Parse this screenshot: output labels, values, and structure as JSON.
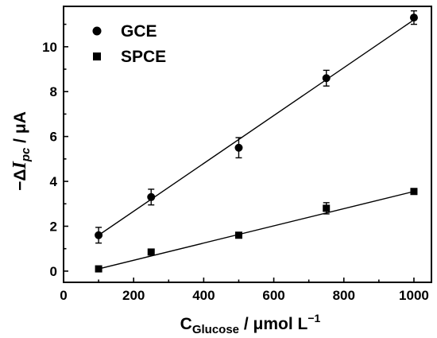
{
  "chart_data": {
    "type": "scatter",
    "xlabel": {
      "main": "C",
      "sub": "Glucose",
      "rest": " / μmol L",
      "sup": "−1"
    },
    "ylabel": {
      "pre": "−Δ",
      "italic": "I",
      "sub": "pc",
      "rest": " / μA"
    },
    "xlim": [
      0,
      1050
    ],
    "ylim": [
      -0.5,
      11.8
    ],
    "xticks": [
      0,
      200,
      400,
      600,
      800,
      1000
    ],
    "yticks": [
      0,
      2,
      4,
      6,
      8,
      10
    ],
    "legend_position": "top-left",
    "grid": false,
    "series": [
      {
        "name": "GCE",
        "marker": "circle",
        "x": [
          100,
          250,
          500,
          750,
          1000
        ],
        "y": [
          1.6,
          3.3,
          5.5,
          8.6,
          11.3
        ],
        "err": [
          0.35,
          0.35,
          0.45,
          0.35,
          0.3
        ],
        "fit": {
          "x": [
            100,
            1000
          ],
          "y": [
            1.6,
            11.2
          ]
        }
      },
      {
        "name": "SPCE",
        "marker": "square",
        "x": [
          100,
          250,
          500,
          750,
          1000
        ],
        "y": [
          0.1,
          0.85,
          1.6,
          2.8,
          3.55
        ],
        "err": [
          0.08,
          0.12,
          0.12,
          0.25,
          0.1
        ],
        "fit": {
          "x": [
            100,
            1000
          ],
          "y": [
            0.1,
            3.55
          ]
        }
      }
    ]
  },
  "colors": {
    "ink": "#000000",
    "background": "#ffffff"
  }
}
